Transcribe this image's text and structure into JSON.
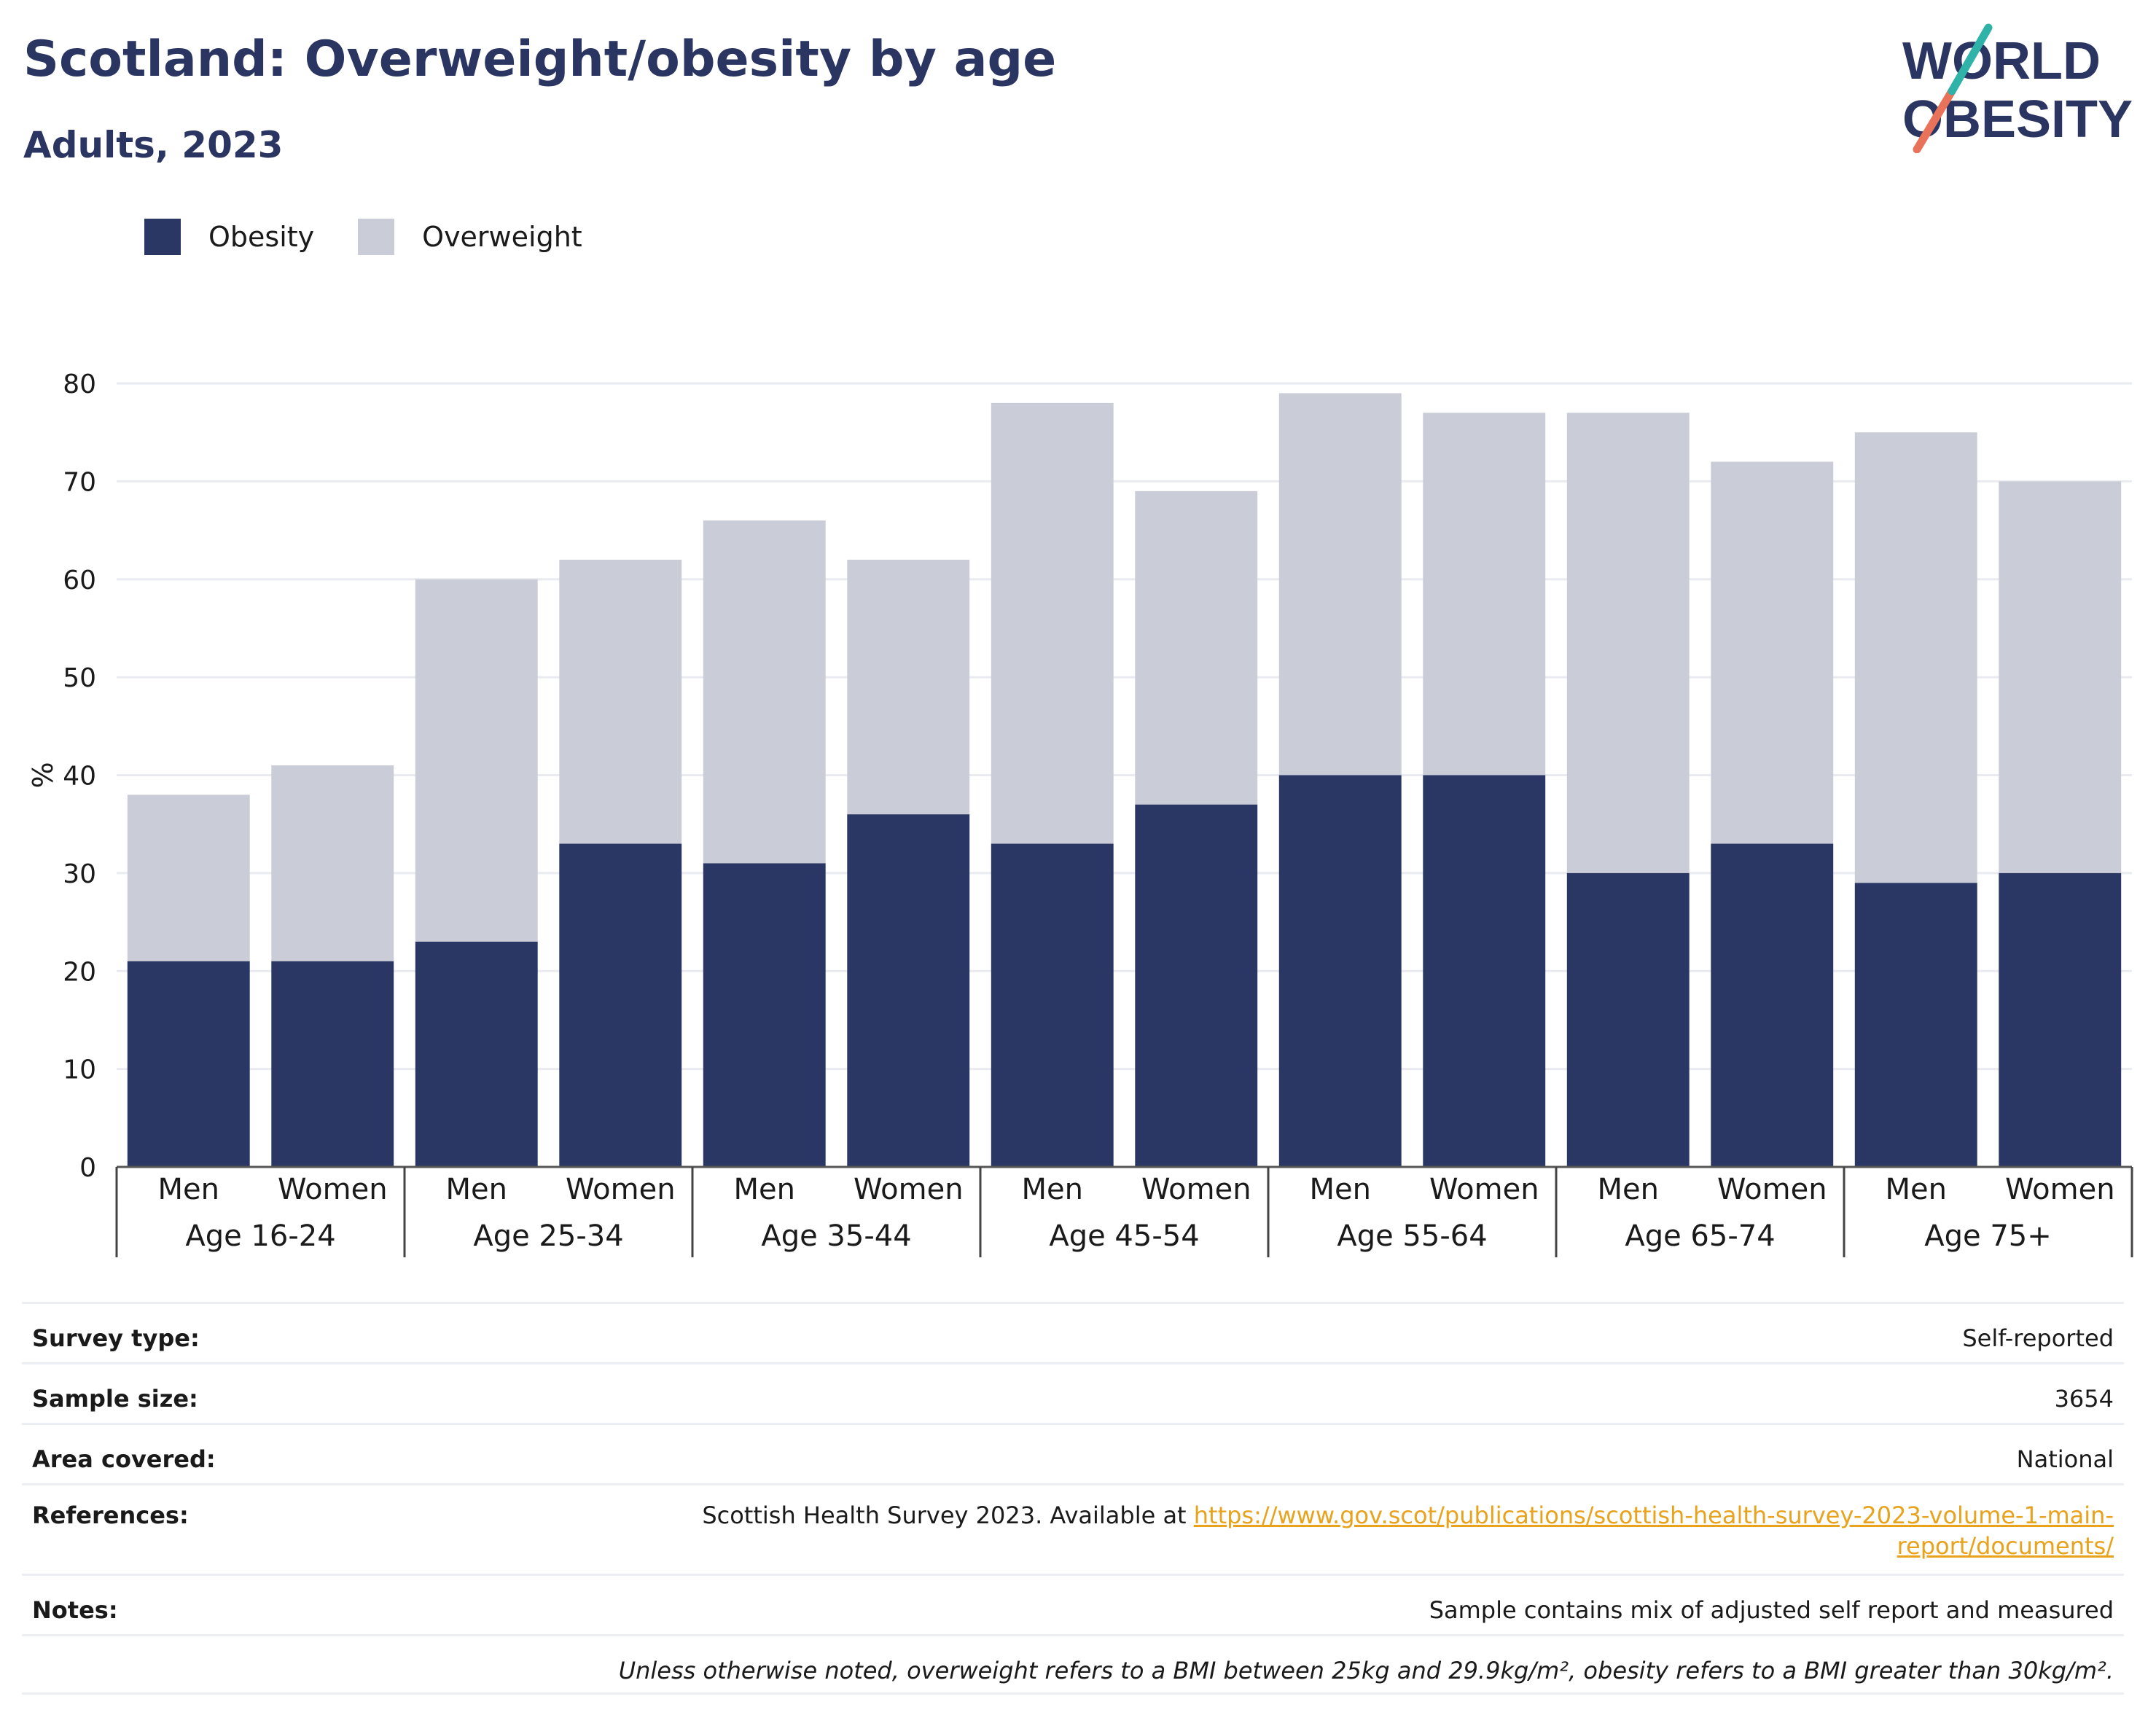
{
  "header": {
    "title": "Scotland: Overweight/obesity by age",
    "subtitle": "Adults, 2023"
  },
  "logo": {
    "line1": "WORLD",
    "line2": "OBESITY",
    "icon": "world-obesity-logo"
  },
  "legend": [
    {
      "label": "Obesity",
      "color": "#2a3663"
    },
    {
      "label": "Overweight",
      "color": "#cacdd8"
    }
  ],
  "chart_data": {
    "type": "bar",
    "stacked": true,
    "ylabel": "%",
    "ylim": [
      0,
      80
    ],
    "yticks": [
      0,
      10,
      20,
      30,
      40,
      50,
      60,
      70,
      80
    ],
    "grid": true,
    "legend_position": "top-left",
    "groups": [
      "Age 16-24",
      "Age 25-34",
      "Age 35-44",
      "Age 45-54",
      "Age 55-64",
      "Age 65-74",
      "Age 75+"
    ],
    "categories": [
      "Men",
      "Women",
      "Men",
      "Women",
      "Men",
      "Women",
      "Men",
      "Women",
      "Men",
      "Women",
      "Men",
      "Women",
      "Men",
      "Women"
    ],
    "series": [
      {
        "name": "Obesity",
        "color": "#2a3663",
        "values": [
          21,
          21,
          23,
          33,
          31,
          36,
          33,
          37,
          40,
          40,
          30,
          33,
          29,
          30
        ]
      },
      {
        "name": "Overweight",
        "color": "#cacdd8",
        "values": [
          17,
          20,
          37,
          29,
          35,
          26,
          45,
          32,
          39,
          37,
          47,
          39,
          46,
          40
        ]
      }
    ]
  },
  "info": {
    "survey_type_label": "Survey type:",
    "survey_type": "Self-reported",
    "sample_size_label": "Sample size:",
    "sample_size": "3654",
    "area_label": "Area covered:",
    "area": "National",
    "references_label": "References:",
    "references_text": "Scottish Health Survey 2023. Available at ",
    "references_link": "https://www.gov.scot/publications/scottish-health-survey-2023-volume-1-main-report/documents/",
    "notes_label": "Notes:",
    "notes": "Sample contains mix of adjusted self report and measured",
    "notes_definition": "Unless otherwise noted, overweight refers to a BMI between 25kg and 29.9kg/m², obesity refers to a BMI greater than 30kg/m²."
  }
}
